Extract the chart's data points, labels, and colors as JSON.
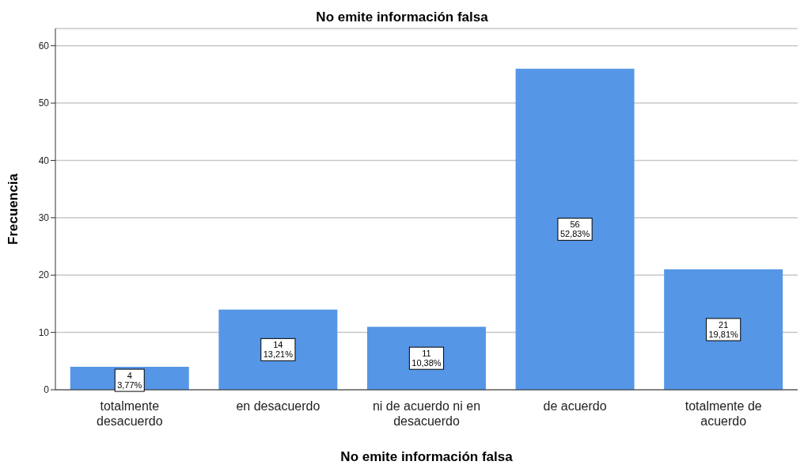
{
  "chart_data": {
    "type": "bar",
    "title": "No emite información falsa",
    "xlabel": "No emite información falsa",
    "ylabel": "Frecuencia",
    "categories": [
      "totalmente desacuerdo",
      "en desacuerdo",
      "ni de acuerdo ni en desacuerdo",
      "de acuerdo",
      "totalmente de acuerdo"
    ],
    "values": [
      4,
      14,
      11,
      56,
      21
    ],
    "color": "#5596e6",
    "value_labels": [
      "4\n3,77%",
      "14\n13,21%",
      "11\n10,38%",
      "56\n52,83%",
      "21\n19,81%"
    ],
    "ylim": [
      0,
      63
    ],
    "yticks": [
      0,
      10,
      20,
      30,
      40,
      50,
      60
    ],
    "grid": "y"
  }
}
